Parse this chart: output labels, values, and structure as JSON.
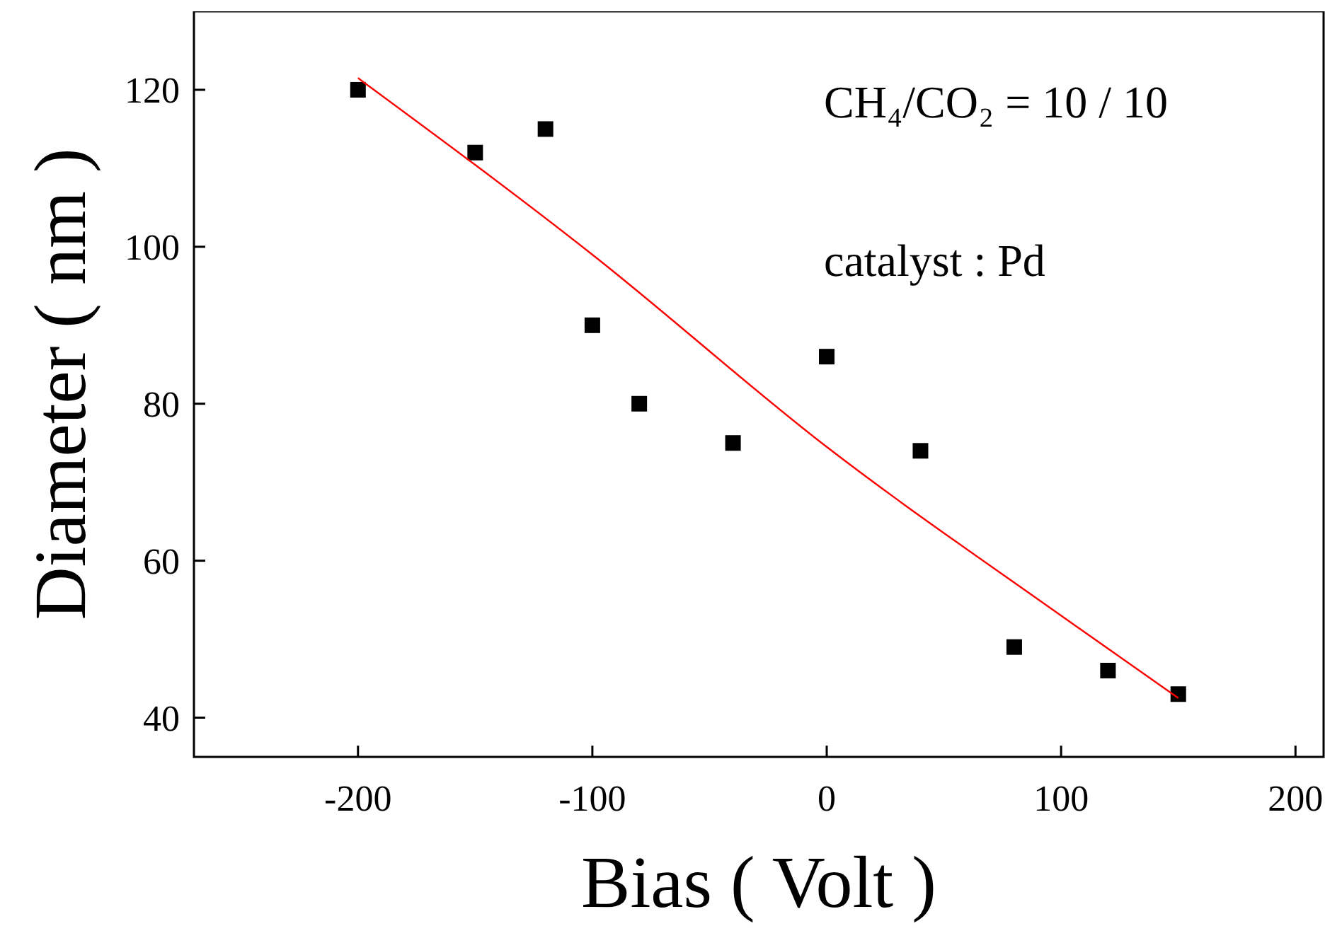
{
  "chart_data": {
    "type": "scatter",
    "xlabel": "Bias ( Volt )",
    "ylabel": "Diameter ( nm )",
    "annotations": [
      "CH₄/CO₂ = 10 / 10",
      "catalyst : Pd"
    ],
    "xlim": [
      -270,
      212
    ],
    "ylim": [
      35,
      130
    ],
    "xticks": [
      -200,
      -100,
      0,
      100,
      200
    ],
    "yticks": [
      40,
      60,
      80,
      100,
      120
    ],
    "grid": false,
    "series": [
      {
        "marker": "square",
        "color": "#000000",
        "x": [
          -200,
          -150,
          -120,
          -100,
          -80,
          -40,
          0,
          40,
          80,
          120,
          150
        ],
        "values": [
          120,
          112,
          115,
          90,
          80,
          75,
          86,
          74,
          49,
          46,
          43
        ]
      },
      {
        "type": "line",
        "marker": "none",
        "color": "#ff0000",
        "x": [
          -200,
          -100,
          0,
          100,
          150
        ],
        "values": [
          121.5,
          99,
          74.5,
          53,
          42.5
        ]
      }
    ]
  }
}
